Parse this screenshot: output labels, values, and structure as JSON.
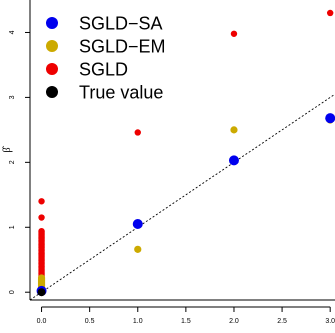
{
  "chart_data": {
    "type": "scatter",
    "title": "",
    "xlabel": "",
    "ylabel": "β̂",
    "xlim": [
      -0.12,
      3.05
    ],
    "ylim": [
      -0.12,
      4.5
    ],
    "x_ticks": [
      {
        "value": 0.0,
        "label": "0.0"
      },
      {
        "value": 0.5,
        "label": "0.5"
      },
      {
        "value": 1.0,
        "label": "1.0"
      },
      {
        "value": 1.5,
        "label": "1.5"
      },
      {
        "value": 2.0,
        "label": "2.0"
      },
      {
        "value": 2.5,
        "label": "2.5"
      },
      {
        "value": 3.0,
        "label": "3.0"
      }
    ],
    "y_ticks": [
      {
        "value": 0,
        "label": "0"
      },
      {
        "value": 1,
        "label": "1"
      },
      {
        "value": 2,
        "label": "2"
      },
      {
        "value": 3,
        "label": "3"
      },
      {
        "value": 4,
        "label": "4"
      }
    ],
    "reference_line": {
      "style": "dotted",
      "slope": 1,
      "intercept": 0,
      "color": "#000000"
    },
    "legend_position": "top-left",
    "series": [
      {
        "name": "SGLD−SA",
        "color": "#0000ee",
        "x": [
          0,
          1,
          2,
          3
        ],
        "y": [
          0.02,
          1.05,
          2.03,
          2.68
        ]
      },
      {
        "name": "SGLD−EM",
        "color": "#ccaa00",
        "x": [
          0,
          0,
          0,
          0,
          0,
          0,
          0,
          0,
          0,
          0,
          0,
          0,
          1,
          2,
          3
        ],
        "y": [
          0.0,
          0.02,
          0.04,
          0.06,
          0.08,
          0.1,
          0.12,
          0.14,
          0.16,
          0.18,
          0.2,
          0.22,
          0.66,
          2.5,
          2.65
        ]
      },
      {
        "name": "SGLD",
        "color": "#ee0000",
        "x": [
          0,
          0,
          0,
          0,
          0,
          0,
          0,
          0,
          0,
          0,
          0,
          0,
          0,
          0,
          0,
          0,
          0,
          0,
          0,
          0,
          0,
          0,
          0,
          0,
          0,
          0,
          0,
          0,
          0,
          0,
          0,
          0,
          0,
          0,
          0,
          0,
          0,
          0,
          0,
          0,
          0,
          0,
          0,
          0,
          0,
          0,
          0,
          0,
          0,
          1,
          2,
          3
        ],
        "y": [
          0.02,
          0.04,
          0.06,
          0.08,
          0.1,
          0.12,
          0.14,
          0.16,
          0.18,
          0.2,
          0.22,
          0.24,
          0.26,
          0.28,
          0.3,
          0.32,
          0.34,
          0.36,
          0.38,
          0.4,
          0.42,
          0.44,
          0.46,
          0.48,
          0.5,
          0.52,
          0.54,
          0.56,
          0.58,
          0.6,
          0.62,
          0.64,
          0.66,
          0.68,
          0.7,
          0.72,
          0.74,
          0.76,
          0.78,
          0.8,
          0.82,
          0.84,
          0.86,
          0.88,
          0.9,
          0.92,
          0.94,
          1.15,
          1.4,
          2.46,
          3.98,
          4.3
        ]
      },
      {
        "name": "True value",
        "color": "#000000",
        "x": [
          0
        ],
        "y": [
          0
        ]
      }
    ]
  }
}
